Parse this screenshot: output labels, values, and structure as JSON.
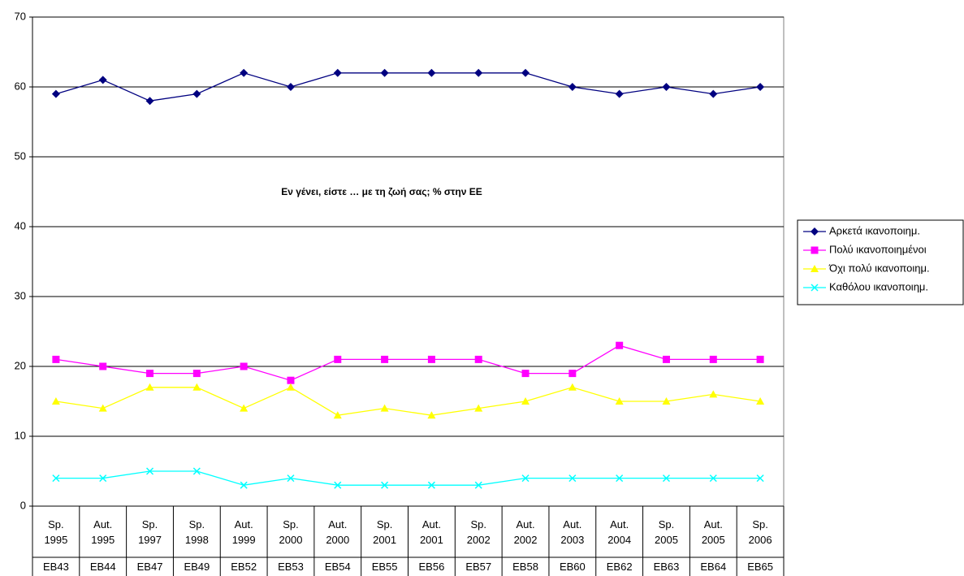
{
  "chart_data": {
    "type": "line",
    "title": "Εν γένει, είστε … με τη ζωή σας; % στην ΕΕ",
    "categories": [
      "Sp. 1995",
      "Aut. 1995",
      "Sp. 1997",
      "Sp. 1998",
      "Aut. 1999",
      "Sp. 2000",
      "Aut. 2000",
      "Sp. 2001",
      "Aut. 2001",
      "Sp. 2002",
      "Aut. 2002",
      "Aut. 2003",
      "Aut. 2004",
      "Sp. 2005",
      "Aut. 2005",
      "Sp. 2006"
    ],
    "category_groups": [
      "EB43",
      "EB44",
      "EB47",
      "EB49",
      "EB52",
      "EB53",
      "EB54",
      "EB55",
      "EB56",
      "EB57",
      "EB58",
      "EB60",
      "EB62",
      "EB63",
      "EB64",
      "EB65"
    ],
    "series": [
      {
        "name": "Αρκετά ικανοποιημ.",
        "color": "#000080",
        "marker": "diamond",
        "values": [
          59,
          61,
          58,
          59,
          62,
          60,
          62,
          62,
          62,
          62,
          62,
          60,
          59,
          60,
          59,
          60
        ]
      },
      {
        "name": "Πολύ ικανοποιημένοι",
        "color": "#ff00ff",
        "marker": "square",
        "values": [
          21,
          20,
          19,
          19,
          20,
          18,
          21,
          21,
          21,
          21,
          19,
          19,
          23,
          21,
          21,
          21
        ]
      },
      {
        "name": "Όχι πολύ ικανοποιημ.",
        "color": "#ffff00",
        "marker": "triangle",
        "values": [
          15,
          14,
          17,
          17,
          14,
          17,
          13,
          14,
          13,
          14,
          15,
          17,
          15,
          15,
          16,
          15
        ]
      },
      {
        "name": "Καθόλου ικανοποιημ.",
        "color": "#00ffff",
        "marker": "x",
        "values": [
          4,
          4,
          5,
          5,
          3,
          4,
          3,
          3,
          3,
          3,
          4,
          4,
          4,
          4,
          4,
          4
        ]
      }
    ],
    "ylim": [
      0,
      70
    ],
    "yticks": [
      0,
      10,
      20,
      30,
      40,
      50,
      60,
      70
    ],
    "grid": true,
    "legend": "right"
  }
}
